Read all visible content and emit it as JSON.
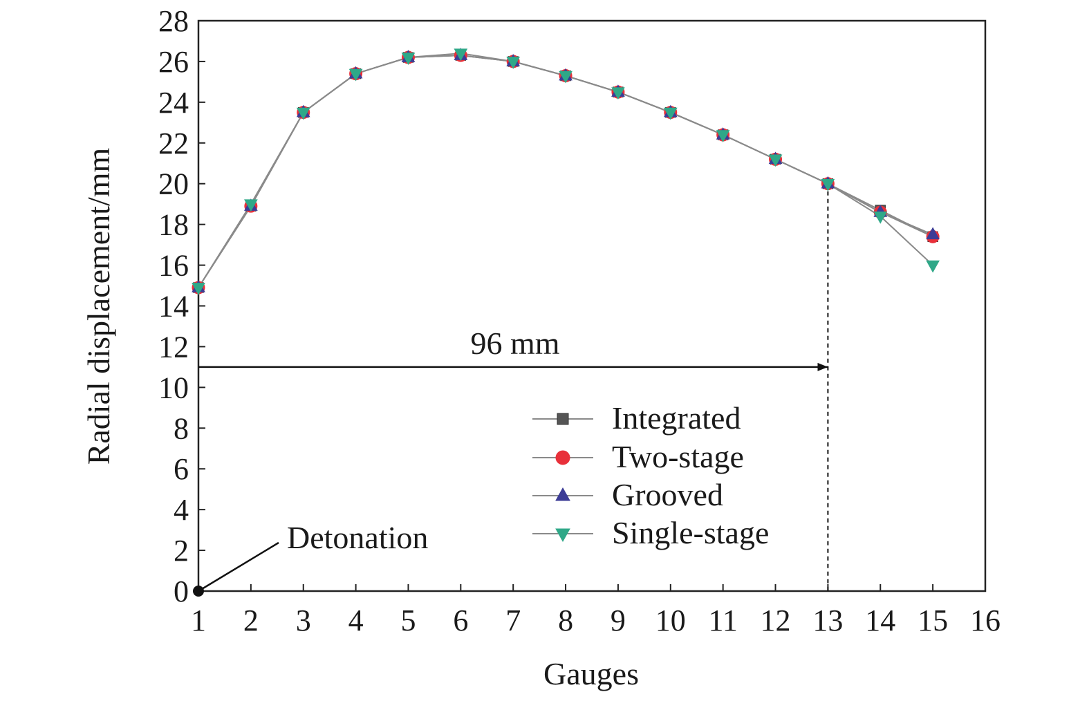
{
  "chart_data": {
    "type": "line",
    "xlabel": "Gauges",
    "ylabel": "Radial displacement/mm",
    "xlim": [
      1,
      16
    ],
    "ylim": [
      0,
      28
    ],
    "x_ticks": [
      1,
      2,
      3,
      4,
      5,
      6,
      7,
      8,
      9,
      10,
      11,
      12,
      13,
      14,
      15,
      16
    ],
    "y_ticks": [
      0,
      2,
      4,
      6,
      8,
      10,
      12,
      14,
      16,
      18,
      20,
      22,
      24,
      26,
      28
    ],
    "x": [
      1,
      2,
      3,
      4,
      5,
      6,
      7,
      8,
      9,
      10,
      11,
      12,
      13,
      14,
      15
    ],
    "series": [
      {
        "name": "Integrated",
        "marker": "square",
        "color": "#555555",
        "values": [
          14.9,
          18.9,
          23.5,
          25.4,
          26.2,
          26.3,
          26.0,
          25.3,
          24.5,
          23.5,
          22.4,
          21.2,
          20.0,
          18.7,
          17.4
        ]
      },
      {
        "name": "Two-stage",
        "marker": "circle",
        "color": "#e8303a",
        "values": [
          14.9,
          18.9,
          23.5,
          25.4,
          26.2,
          26.3,
          26.0,
          25.3,
          24.5,
          23.5,
          22.4,
          21.2,
          20.0,
          18.6,
          17.4
        ]
      },
      {
        "name": "Grooved",
        "marker": "triangle-up",
        "color": "#3c3c96",
        "values": [
          14.9,
          18.9,
          23.5,
          25.4,
          26.2,
          26.3,
          26.0,
          25.3,
          24.5,
          23.5,
          22.4,
          21.2,
          20.0,
          18.6,
          17.5
        ]
      },
      {
        "name": "Single-stage",
        "marker": "triangle-down",
        "color": "#2fa888",
        "values": [
          14.9,
          19.0,
          23.5,
          25.4,
          26.2,
          26.4,
          26.0,
          25.3,
          24.5,
          23.5,
          22.4,
          21.2,
          20.0,
          18.4,
          16.0
        ]
      }
    ],
    "grid": false,
    "legend_position": "center-right",
    "annotations": {
      "detonation": {
        "label": "Detonation",
        "point": [
          1,
          0
        ]
      },
      "distance": {
        "label": "96 mm",
        "from": [
          1,
          11
        ],
        "to": [
          13,
          11
        ],
        "drop_from": [
          13,
          20
        ]
      }
    }
  }
}
